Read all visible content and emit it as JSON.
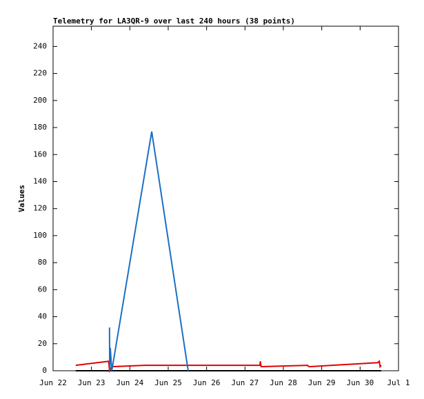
{
  "chart_data": {
    "type": "line",
    "title": "Telemetry for LA3QR-9 over last 240 hours (38 points)",
    "y_label": "Values",
    "xlim": [
      22,
      31
    ],
    "ylim": [
      0,
      255
    ],
    "xticks": [
      {
        "value": 22,
        "label": "Jun 22"
      },
      {
        "value": 23,
        "label": "Jun 23"
      },
      {
        "value": 24,
        "label": "Jun 24"
      },
      {
        "value": 25,
        "label": "Jun 25"
      },
      {
        "value": 26,
        "label": "Jun 26"
      },
      {
        "value": 27,
        "label": "Jun 27"
      },
      {
        "value": 28,
        "label": "Jun 28"
      },
      {
        "value": 29,
        "label": "Jun 29"
      },
      {
        "value": 30,
        "label": "Jun 30"
      },
      {
        "value": 31,
        "label": "Jul 1"
      }
    ],
    "yticks": [
      0,
      20,
      40,
      60,
      80,
      100,
      120,
      140,
      160,
      180,
      200,
      220,
      240
    ],
    "series": [
      {
        "color": "#000000",
        "x": [
          22.59,
          30.55
        ],
        "values": [
          0,
          0
        ]
      },
      {
        "color": "#e00000",
        "x": [
          22.59,
          23.45,
          23.47,
          23.53,
          24.39,
          27.39,
          27.4,
          27.42,
          28.63,
          28.67,
          30.46,
          30.5,
          30.52,
          30.55
        ],
        "values": [
          4,
          7,
          0,
          3,
          4,
          4,
          7,
          3,
          4,
          3,
          6,
          7,
          3,
          4
        ]
      },
      {
        "color": "#1a6fc4",
        "x": [
          23.47,
          23.475,
          23.49,
          23.53,
          24.57,
          25.52
        ],
        "values": [
          32,
          0,
          17,
          0,
          177,
          0
        ]
      }
    ]
  }
}
